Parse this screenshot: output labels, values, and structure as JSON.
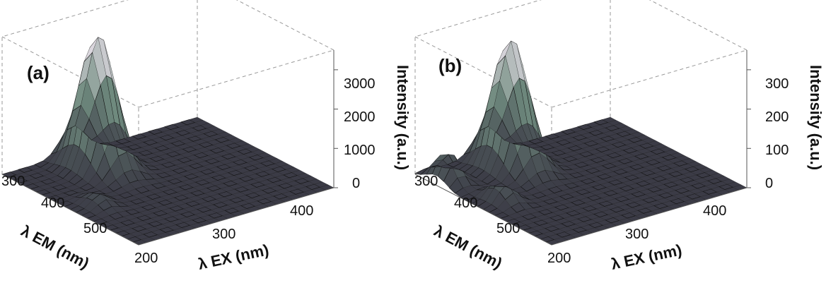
{
  "chart_data": [
    {
      "type": "surface",
      "panel_label": "(a)",
      "xlabel": "λ EX (nm)",
      "x_tick_labels": [
        "200",
        "300",
        "400"
      ],
      "ylabel": "λ EM (nm)",
      "y_tick_labels": [
        "300",
        "400",
        "500"
      ],
      "zlabel": "Intensity (a.u.)",
      "z_tick_labels": [
        "0",
        "1000",
        "2000",
        "3000"
      ],
      "x_range": [
        200,
        450
      ],
      "y_range": [
        280,
        600
      ],
      "zlim": [
        0,
        3500
      ],
      "peaks": [
        {
          "ex": 290,
          "em": 340,
          "intensity": 3400
        },
        {
          "ex": 230,
          "em": 450,
          "intensity": 300
        }
      ]
    },
    {
      "type": "surface",
      "panel_label": "(b)",
      "xlabel": "λ EX (nm)",
      "x_tick_labels": [
        "200",
        "300",
        "400"
      ],
      "ylabel": "λ EM (nm)",
      "y_tick_labels": [
        "300",
        "400",
        "500"
      ],
      "zlabel": "Intensity (a.u.)",
      "z_tick_labels": [
        "0",
        "100",
        "200",
        "300"
      ],
      "x_range": [
        200,
        450
      ],
      "y_range": [
        280,
        600
      ],
      "zlim": [
        0,
        350
      ],
      "peaks": [
        {
          "ex": 290,
          "em": 340,
          "intensity": 330
        },
        {
          "ex": 215,
          "em": 330,
          "intensity": 80
        },
        {
          "ex": 230,
          "em": 430,
          "intensity": 55
        }
      ]
    }
  ],
  "colors": {
    "surface_low": "#3b3b46",
    "surface_mid": "#6f8a7e",
    "surface_high": "#f4e9f4",
    "mesh": "#101010",
    "box": "#9a9a9a"
  }
}
